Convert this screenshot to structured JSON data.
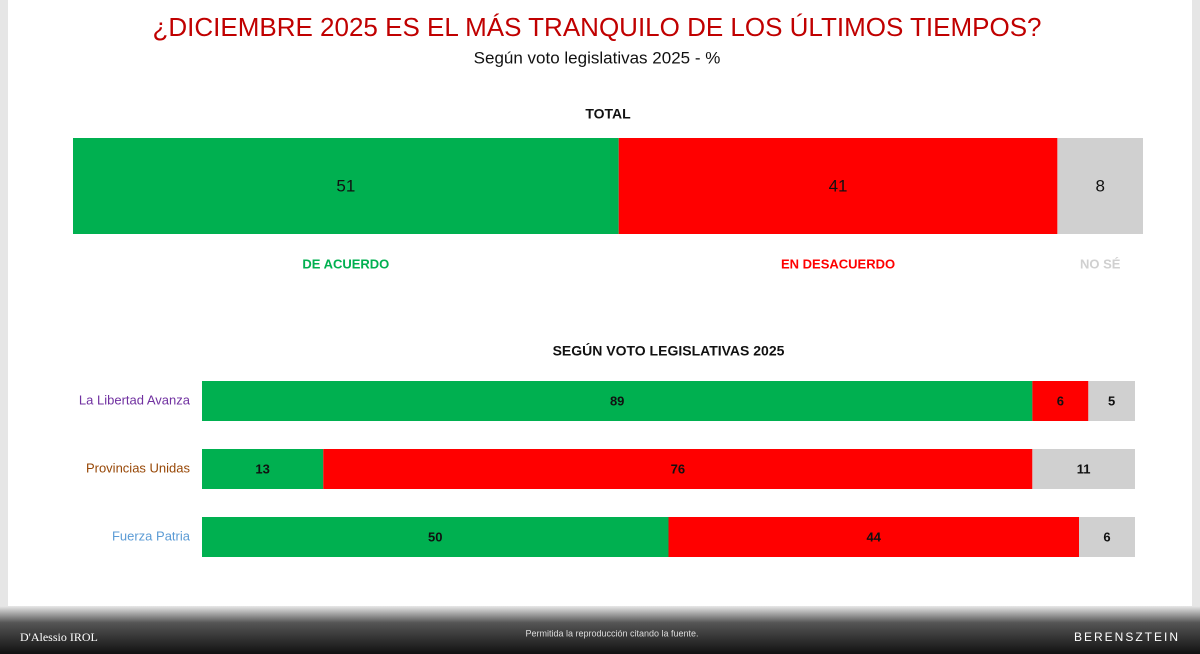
{
  "header": {
    "title": "¿DICIEMBRE 2025 ES EL MÁS TRANQUILO DE LOS ÚLTIMOS TIEMPOS?",
    "subtitle": "Según voto legislativas 2025 - %"
  },
  "chart_data": [
    {
      "type": "stacked-bar",
      "title": "TOTAL",
      "xlim": [
        0,
        100
      ],
      "series": [
        {
          "name": "DE ACUERDO",
          "color": "#00b050",
          "values": [
            51
          ]
        },
        {
          "name": "EN DESACUERDO",
          "color": "#ff0000",
          "values": [
            41
          ]
        },
        {
          "name": "NO SÉ",
          "color": "#d0d0d0",
          "values": [
            8
          ]
        }
      ]
    },
    {
      "type": "stacked-bar",
      "title": "SEGÚN VOTO LEGISLATIVAS 2025",
      "xlim": [
        0,
        100
      ],
      "categories": [
        "La Libertad Avanza",
        "Provincias Unidas",
        "Fuerza Patria"
      ],
      "category_colors": [
        "#7030a0",
        "#974706",
        "#5b9bd5"
      ],
      "series": [
        {
          "color": "#00b050",
          "values": [
            89,
            13,
            50
          ]
        },
        {
          "color": "#ff0000",
          "values": [
            6,
            76,
            44
          ]
        },
        {
          "color": "#d0d0d0",
          "values": [
            5,
            11,
            6
          ]
        }
      ]
    }
  ],
  "footer": {
    "left": "D'Alessio IROL",
    "center": "Permitida la reproducción citando la fuente.",
    "right": "BERENSZTEIN"
  }
}
